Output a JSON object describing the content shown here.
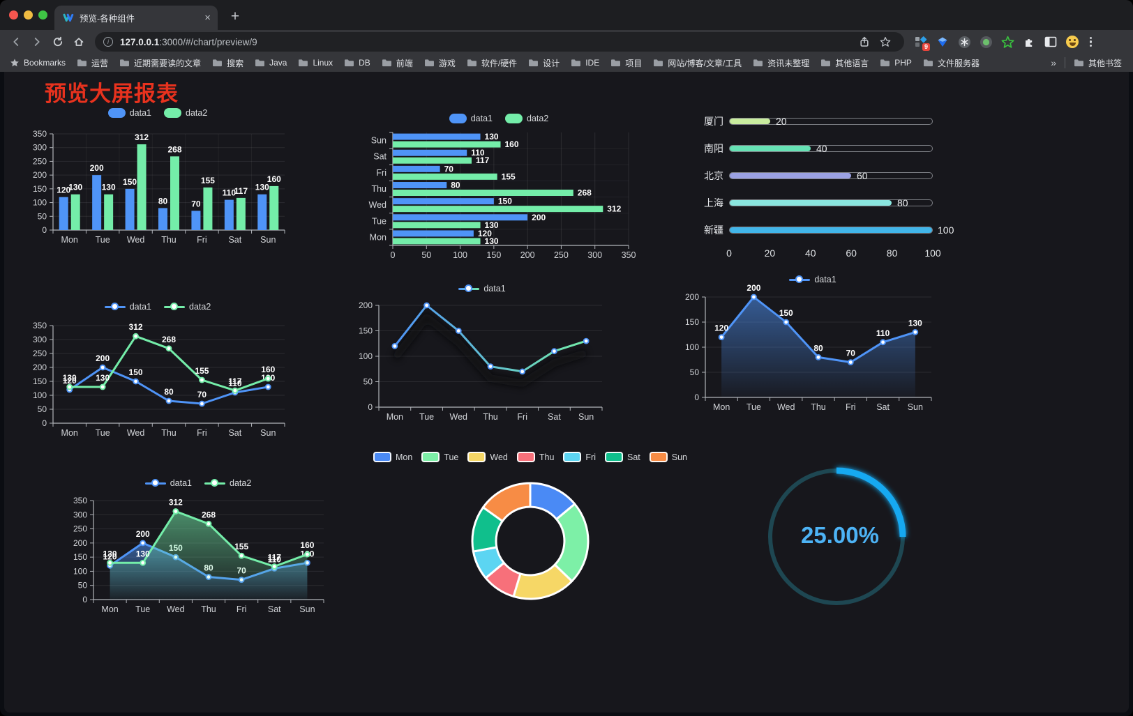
{
  "browser": {
    "tab_title": "预览-各种组件",
    "tab_close": "×",
    "new_tab": "+",
    "url_host": "127.0.0.1",
    "url_rest": ":3000/#/chart/preview/9",
    "ext_badge": "9",
    "bookmarks_root": "Bookmarks",
    "bookmarks": [
      "运营",
      "近期需要读的文章",
      "搜索",
      "Java",
      "Linux",
      "DB",
      "前端",
      "游戏",
      "软件/硬件",
      "设计",
      "IDE",
      "项目",
      "网站/博客/文章/工具",
      "资讯未整理",
      "其他语言",
      "PHP",
      "文件服务器"
    ],
    "overflow_chevron": "»",
    "other_bookmarks": "其他书签",
    "icons": [
      "back-icon",
      "forward-icon",
      "reload-icon",
      "home-icon",
      "site-info-icon",
      "share-icon",
      "bookmark-star-icon",
      "proxy-grid-icon",
      "gem-icon",
      "circle-asterisk-icon",
      "circle-dot-icon",
      "star-outline-icon",
      "puzzle-icon",
      "sidebar-icon",
      "emoji-icon",
      "menu-dots-icon"
    ]
  },
  "page": {
    "title": "预览大屏报表",
    "title_color": "#e8321e",
    "background": "#17171c"
  },
  "chart_data": [
    {
      "id": "c1",
      "type": "bar",
      "categories": [
        "Mon",
        "Tue",
        "Wed",
        "Thu",
        "Fri",
        "Sat",
        "Sun"
      ],
      "series": [
        {
          "name": "data1",
          "color": "#4f94f7",
          "values": [
            120,
            200,
            150,
            80,
            70,
            110,
            130
          ]
        },
        {
          "name": "data2",
          "color": "#74eda9",
          "values": [
            130,
            130,
            312,
            268,
            155,
            117,
            160
          ]
        }
      ],
      "ylim": [
        0,
        350
      ],
      "ystep": 50,
      "legend_position": "top",
      "grid": true,
      "value_labels": true
    },
    {
      "id": "c2",
      "type": "bar-horizontal",
      "categories": [
        "Mon",
        "Tue",
        "Wed",
        "Thu",
        "Fri",
        "Sat",
        "Sun"
      ],
      "series": [
        {
          "name": "data1",
          "color": "#4f94f7",
          "values": [
            120,
            200,
            150,
            80,
            70,
            110,
            130
          ]
        },
        {
          "name": "data2",
          "color": "#74eda9",
          "values": [
            130,
            130,
            312,
            268,
            155,
            117,
            160
          ]
        }
      ],
      "xlim": [
        0,
        350
      ],
      "xstep": 50,
      "legend_position": "top",
      "grid": true,
      "value_labels": true
    },
    {
      "id": "c3",
      "type": "bar-progress",
      "max": 100,
      "ticks": [
        0,
        20,
        40,
        60,
        80,
        100
      ],
      "rows": [
        {
          "label": "厦门",
          "value": 20,
          "color": "#c9ec9e"
        },
        {
          "label": "南阳",
          "value": 40,
          "color": "#66e2b4"
        },
        {
          "label": "北京",
          "value": 60,
          "color": "#9ba1e3"
        },
        {
          "label": "上海",
          "value": 80,
          "color": "#8ae6df"
        },
        {
          "label": "新疆",
          "value": 100,
          "color": "#41b5e9"
        }
      ]
    },
    {
      "id": "c4",
      "type": "line",
      "categories": [
        "Mon",
        "Tue",
        "Wed",
        "Thu",
        "Fri",
        "Sat",
        "Sun"
      ],
      "series": [
        {
          "name": "data1",
          "color": "#4f94f7",
          "values": [
            120,
            200,
            150,
            80,
            70,
            110,
            130
          ]
        },
        {
          "name": "data2",
          "color": "#74eda9",
          "values": [
            130,
            130,
            312,
            268,
            155,
            117,
            160
          ]
        }
      ],
      "ylim": [
        0,
        350
      ],
      "ystep": 50,
      "legend_position": "top",
      "value_labels": true
    },
    {
      "id": "c5",
      "type": "line",
      "categories": [
        "Mon",
        "Tue",
        "Wed",
        "Thu",
        "Fri",
        "Sat",
        "Sun"
      ],
      "series": [
        {
          "name": "data1",
          "color": "#4f94f7",
          "color2": "#74eda9",
          "values": [
            120,
            200,
            150,
            80,
            70,
            110,
            130
          ]
        }
      ],
      "ylim": [
        0,
        200
      ],
      "ystep": 50,
      "legend_position": "top",
      "value_labels": false,
      "shadow": true
    },
    {
      "id": "c6",
      "type": "line-area",
      "categories": [
        "Mon",
        "Tue",
        "Wed",
        "Thu",
        "Fri",
        "Sat",
        "Sun"
      ],
      "series": [
        {
          "name": "data1",
          "color": "#4f94f7",
          "values": [
            120,
            200,
            150,
            80,
            70,
            110,
            130
          ]
        }
      ],
      "ylim": [
        0,
        200
      ],
      "ystep": 50,
      "legend_position": "top",
      "value_labels": true
    },
    {
      "id": "c7",
      "type": "line-area",
      "categories": [
        "Mon",
        "Tue",
        "Wed",
        "Thu",
        "Fri",
        "Sat",
        "Sun"
      ],
      "series": [
        {
          "name": "data1",
          "color": "#4f94f7",
          "values": [
            120,
            200,
            150,
            80,
            70,
            110,
            130
          ]
        },
        {
          "name": "data2",
          "color": "#74eda9",
          "values": [
            130,
            130,
            312,
            268,
            155,
            117,
            160
          ]
        }
      ],
      "ylim": [
        0,
        350
      ],
      "ystep": 50,
      "legend_position": "top",
      "value_labels": true
    },
    {
      "id": "c8",
      "type": "pie",
      "labels": [
        "Mon",
        "Tue",
        "Wed",
        "Thu",
        "Fri",
        "Sat",
        "Sun"
      ],
      "values": [
        120,
        200,
        150,
        80,
        70,
        110,
        130
      ],
      "colors": [
        "#4a8af5",
        "#7df0a7",
        "#f6d766",
        "#f7707a",
        "#5cd5f2",
        "#10bf8c",
        "#f78c45"
      ],
      "inner_radius_ratio": 0.59,
      "legend_position": "top"
    },
    {
      "id": "c9",
      "type": "gauge",
      "value": 25,
      "display": "25.00%",
      "arc_color": "#18a9f1",
      "track_color": "#1e4752",
      "text_color": "#4db3f5"
    }
  ]
}
